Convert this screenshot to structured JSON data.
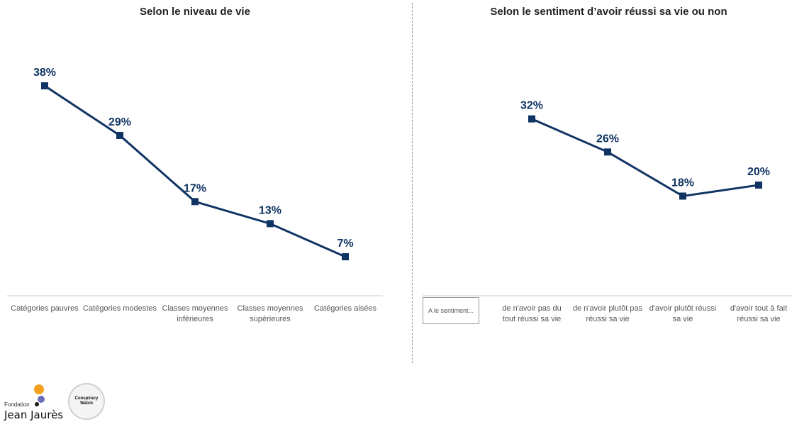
{
  "chart_data": [
    {
      "type": "line",
      "title": "Selon le niveau de vie",
      "categories": [
        "Catégories pauvres",
        "Catégories modestes",
        "Classes moyennes inférieures",
        "Classes moyennes supérieures",
        "Catégories aisées"
      ],
      "values": [
        38,
        29,
        17,
        13,
        7
      ],
      "value_labels": [
        "38%",
        "29%",
        "17%",
        "13%",
        "7%"
      ],
      "unit": "%",
      "color": "#0f3463",
      "marker": "square",
      "grid": false
    },
    {
      "type": "line",
      "title": "Selon le sentiment d’avoir réussi sa vie ou non",
      "legend": "A le sentiment...",
      "categories": [
        "de n'avoir pas du tout réussi sa vie",
        "de n'avoir plutôt pas réussi sa vie",
        "d'avoir plutôt réussi sa vie",
        "d'avoir tout à fait réussi sa vie"
      ],
      "values": [
        32,
        26,
        18,
        20
      ],
      "value_labels": [
        "32%",
        "26%",
        "18%",
        "20%"
      ],
      "unit": "%",
      "color": "#0f3463",
      "marker": "square",
      "grid": false
    }
  ],
  "logos": {
    "left_small": "Fondation",
    "left_main": "Jean Jaurès",
    "right": "Conspiracy Watch"
  }
}
